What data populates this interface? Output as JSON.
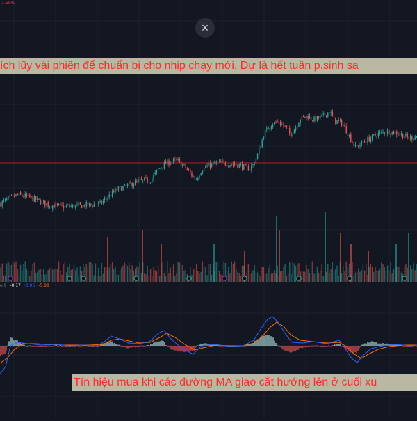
{
  "header": {
    "tiny_text": "-1.55%",
    "close_label": "×"
  },
  "annotations": {
    "top_note": "ích lũy vài phiên để chuẩn bị cho nhịp chạy mới. Dự là hết tuần p.sinh  sa",
    "bottom_note": "Tín hiệu mua khi các đường MA giao cắt hướng lên ở cuối xu"
  },
  "indicator": {
    "label": "e 9",
    "value1": "-0.17",
    "value2": "-0.05",
    "value3": "-5.88",
    "colors": {
      "value1": "#f0f0f0",
      "value2": "#2962ff",
      "value3": "#ff6d00"
    }
  },
  "colors": {
    "background": "#131722",
    "up": "#26a69a",
    "down": "#ef5350",
    "macd_line": "#2962ff",
    "signal_line": "#ff6d00",
    "hist_up": "#b2dfdb",
    "hist_down": "#ef5350",
    "marker_green": "#26a69a",
    "marker_purple": "#9c27b0",
    "hline": "#b71c1c"
  },
  "chart_data": [
    {
      "type": "candlestick",
      "title": "",
      "price_trend": [
        [
          0,
          30
        ],
        [
          12,
          38
        ],
        [
          25,
          45
        ],
        [
          40,
          42
        ],
        [
          55,
          35
        ],
        [
          70,
          28
        ],
        [
          90,
          25
        ],
        [
          110,
          26
        ],
        [
          130,
          28
        ],
        [
          145,
          30
        ],
        [
          155,
          42
        ],
        [
          170,
          55
        ],
        [
          185,
          62
        ],
        [
          200,
          68
        ],
        [
          218,
          72
        ],
        [
          228,
          90
        ],
        [
          240,
          100
        ],
        [
          255,
          104
        ],
        [
          265,
          94
        ],
        [
          275,
          80
        ],
        [
          282,
          72
        ],
        [
          290,
          88
        ],
        [
          300,
          96
        ],
        [
          315,
          100
        ],
        [
          330,
          98
        ],
        [
          345,
          96
        ],
        [
          358,
          90
        ],
        [
          365,
          98
        ],
        [
          372,
          118
        ],
        [
          380,
          150
        ],
        [
          390,
          166
        ],
        [
          400,
          170
        ],
        [
          410,
          162
        ],
        [
          418,
          148
        ],
        [
          425,
          160
        ],
        [
          432,
          176
        ],
        [
          442,
          180
        ],
        [
          452,
          174
        ],
        [
          462,
          178
        ],
        [
          474,
          188
        ],
        [
          482,
          172
        ],
        [
          492,
          168
        ],
        [
          500,
          152
        ],
        [
          506,
          138
        ],
        [
          512,
          126
        ],
        [
          520,
          134
        ],
        [
          530,
          140
        ],
        [
          545,
          150
        ],
        [
          560,
          154
        ],
        [
          575,
          150
        ],
        [
          588,
          142
        ],
        [
          600,
          146
        ]
      ],
      "hline_value": 100
    },
    {
      "type": "bar",
      "title": "Volume",
      "markers": [
        {
          "x": 15,
          "kind": "purple"
        },
        {
          "x": 100,
          "kind": "green"
        },
        {
          "x": 120,
          "kind": "green"
        },
        {
          "x": 196,
          "kind": "green"
        },
        {
          "x": 272,
          "kind": "green"
        },
        {
          "x": 323,
          "kind": "purple"
        },
        {
          "x": 352,
          "kind": "green"
        },
        {
          "x": 430,
          "kind": "green"
        },
        {
          "x": 503,
          "kind": "green"
        },
        {
          "x": 582,
          "kind": "green"
        }
      ],
      "spikes": [
        {
          "x": 155,
          "v": 0.65
        },
        {
          "x": 205,
          "v": 0.75
        },
        {
          "x": 232,
          "v": 0.55
        },
        {
          "x": 308,
          "v": 0.55
        },
        {
          "x": 352,
          "v": 0.45
        },
        {
          "x": 398,
          "v": 0.95
        },
        {
          "x": 402,
          "v": 0.75
        },
        {
          "x": 468,
          "v": 1.0
        },
        {
          "x": 490,
          "v": 0.7
        },
        {
          "x": 505,
          "v": 0.55
        },
        {
          "x": 530,
          "v": 0.45
        },
        {
          "x": 570,
          "v": 0.55
        },
        {
          "x": 588,
          "v": 0.7
        }
      ]
    },
    {
      "type": "line",
      "title": "MACD",
      "series": [
        {
          "key": "macd",
          "points": [
            [
              0,
              -40
            ],
            [
              8,
              -30
            ],
            [
              15,
              0
            ],
            [
              25,
              5
            ],
            [
              40,
              3
            ],
            [
              60,
              1
            ],
            [
              80,
              2
            ],
            [
              100,
              0
            ],
            [
              120,
              1
            ],
            [
              140,
              0
            ],
            [
              150,
              6
            ],
            [
              160,
              14
            ],
            [
              172,
              10
            ],
            [
              185,
              4
            ],
            [
              200,
              3
            ],
            [
              215,
              6
            ],
            [
              228,
              18
            ],
            [
              236,
              22
            ],
            [
              246,
              10
            ],
            [
              262,
              -4
            ],
            [
              278,
              -12
            ],
            [
              290,
              0
            ],
            [
              310,
              2
            ],
            [
              330,
              -1
            ],
            [
              350,
              0
            ],
            [
              365,
              8
            ],
            [
              375,
              24
            ],
            [
              385,
              38
            ],
            [
              392,
              42
            ],
            [
              400,
              34
            ],
            [
              410,
              18
            ],
            [
              420,
              5
            ],
            [
              435,
              4
            ],
            [
              450,
              6
            ],
            [
              470,
              3
            ],
            [
              488,
              8
            ],
            [
              498,
              -6
            ],
            [
              506,
              -18
            ],
            [
              514,
              -24
            ],
            [
              522,
              -14
            ],
            [
              534,
              -4
            ],
            [
              550,
              0
            ],
            [
              570,
              2
            ],
            [
              590,
              0
            ],
            [
              600,
              1
            ]
          ]
        },
        {
          "key": "signal",
          "points": [
            [
              0,
              -25
            ],
            [
              10,
              -18
            ],
            [
              20,
              -6
            ],
            [
              32,
              3
            ],
            [
              50,
              3
            ],
            [
              70,
              2
            ],
            [
              90,
              1
            ],
            [
              110,
              1
            ],
            [
              130,
              1
            ],
            [
              148,
              2
            ],
            [
              160,
              8
            ],
            [
              172,
              10
            ],
            [
              186,
              7
            ],
            [
              200,
              4
            ],
            [
              216,
              5
            ],
            [
              230,
              12
            ],
            [
              240,
              18
            ],
            [
              252,
              12
            ],
            [
              266,
              2
            ],
            [
              280,
              -6
            ],
            [
              292,
              -3
            ],
            [
              310,
              1
            ],
            [
              330,
              0
            ],
            [
              350,
              0
            ],
            [
              366,
              4
            ],
            [
              378,
              14
            ],
            [
              388,
              26
            ],
            [
              398,
              34
            ],
            [
              408,
              28
            ],
            [
              418,
              16
            ],
            [
              432,
              8
            ],
            [
              450,
              6
            ],
            [
              470,
              4
            ],
            [
              488,
              5
            ],
            [
              500,
              -2
            ],
            [
              510,
              -12
            ],
            [
              520,
              -18
            ],
            [
              530,
              -12
            ],
            [
              544,
              -5
            ],
            [
              560,
              -1
            ],
            [
              580,
              1
            ],
            [
              600,
              1
            ]
          ]
        }
      ]
    }
  ]
}
